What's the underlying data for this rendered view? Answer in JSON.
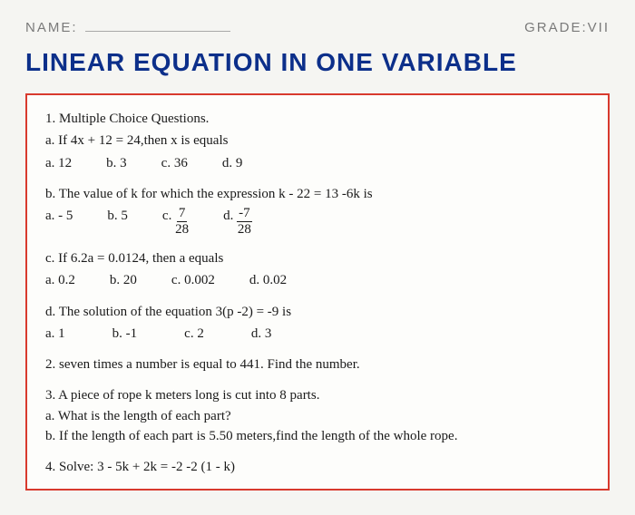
{
  "colors": {
    "title_color": "#0c2f8a",
    "box_border": "#d83a2e",
    "label_gray": "#7a7a7a",
    "text_color": "#1a1a1a",
    "background": "#f5f5f2"
  },
  "header": {
    "name_label": "NAME:",
    "grade_label": "GRADE:",
    "grade_value": "VII"
  },
  "title": "LINEAR EQUATION IN ONE VARIABLE",
  "q1": {
    "heading": "1. Multiple Choice Questions.",
    "a": {
      "text": "a. If 4x + 12 = 24,then x is equals",
      "opts": {
        "a": "a. 12",
        "b": "b. 3",
        "c": "c. 36",
        "d": "d. 9"
      }
    },
    "b": {
      "text": "b. The value of k for which the expression k - 22 = 13 -6k is",
      "opts": {
        "a": "a. - 5",
        "b": "b. 5",
        "c_prefix": "c. ",
        "c_num": "7",
        "c_den": "28",
        "d_prefix": "d. ",
        "d_num": "-7",
        "d_den": "28"
      }
    },
    "c": {
      "text": "c. If 6.2a = 0.0124, then a equals",
      "opts": {
        "a": "a.  0.2",
        "b": "b. 20",
        "c": "c. 0.002",
        "d": "d. 0.02"
      }
    },
    "d": {
      "text": "d. The solution of the equation 3(p -2) = -9 is",
      "opts": {
        "a": "a.  1",
        "b": "b. -1",
        "c": "c. 2",
        "d": "d. 3"
      }
    }
  },
  "q2": "2. seven  times a number is equal to 441. Find the number.",
  "q3": {
    "text": "3. A piece of rope k meters long is cut into 8 parts.",
    "a": "a. What is the length of each part?",
    "b": "b. If the length of each part is 5.50 meters,find the length of the whole rope."
  },
  "q4": "4. Solve: 3 - 5k + 2k = -2 -2  (1 - k)"
}
